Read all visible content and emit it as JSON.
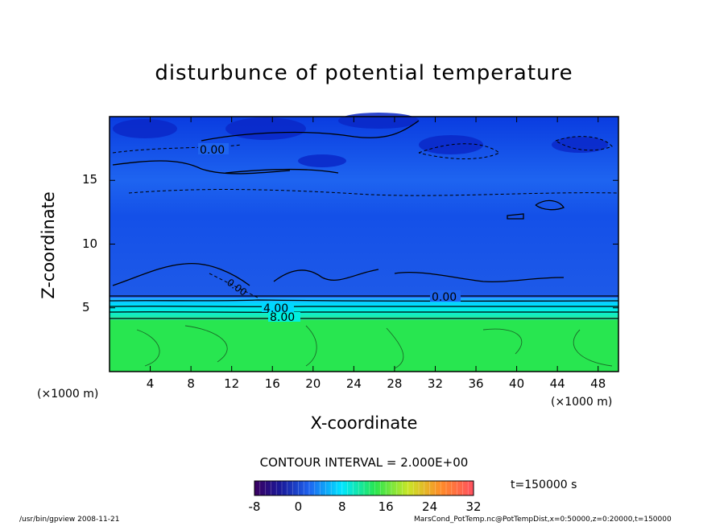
{
  "chart_data": {
    "type": "heatmap",
    "title": "disturbunce of potential temperature",
    "xlabel": "X-coordinate",
    "ylabel": "Z-coordinate",
    "x_unit": "(×1000 m)",
    "x_ticks": [
      "4",
      "8",
      "12",
      "16",
      "20",
      "24",
      "28",
      "32",
      "36",
      "40",
      "44",
      "48"
    ],
    "y_ticks": [
      "5",
      "10",
      "15"
    ],
    "xlim": [
      0,
      50
    ],
    "ylim": [
      0,
      20
    ],
    "contour_interval": "CONTOUR INTERVAL = 2.000E+00",
    "contour_labels": [
      "0.00",
      "0.00",
      "0.00",
      "4.00",
      "8.00"
    ],
    "colorbar": {
      "ticks": [
        "-8",
        "0",
        "8",
        "16",
        "24",
        "32"
      ],
      "min": -8,
      "max": 32
    },
    "layers": [
      {
        "z_range": [
          0,
          4.2
        ],
        "value": 12
      },
      {
        "z_range": [
          4.2,
          5.8
        ],
        "value": 6
      },
      {
        "z_range": [
          5.8,
          14
        ],
        "value": -2
      },
      {
        "z_range": [
          14,
          20
        ],
        "value": -4
      }
    ],
    "time_label": "t=150000 s",
    "colors": {
      "deep_blue": "#0a28e6",
      "blue": "#1e64f0",
      "cyan": "#00e6ff",
      "green": "#28e650"
    }
  },
  "footer": {
    "left": "/usr/bin/gpview   2008-11-21",
    "right": "MarsCond_PotTemp.nc@PotTempDist,x=0:50000,z=0:20000,t=150000"
  }
}
